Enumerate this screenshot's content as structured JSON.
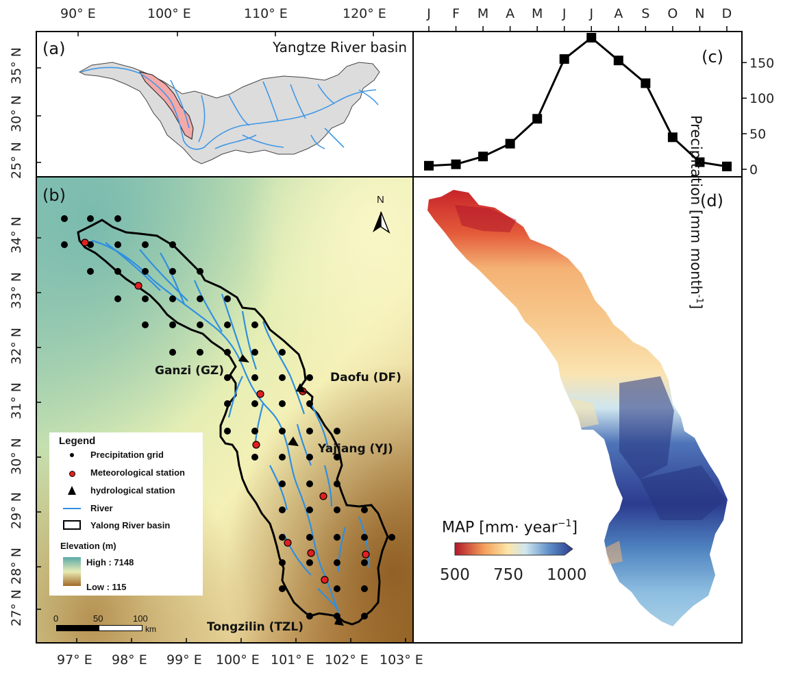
{
  "panel_a": {
    "label": "(a)",
    "title": "Yangtze River basin",
    "top_ticks": [
      "90° E",
      "100° E",
      "110° E",
      "120° E"
    ],
    "left_ticks": [
      "35° N",
      "30° N",
      "25° N"
    ]
  },
  "panel_b": {
    "label": "(b)",
    "north": "N",
    "bottom_ticks": [
      "97° E",
      "98° E",
      "99° E",
      "100° E",
      "101° E",
      "102° E",
      "103° E"
    ],
    "left_ticks": [
      "34° N",
      "33° N",
      "32° N",
      "31° N",
      "30° N",
      "29° N",
      "28° N",
      "27° N"
    ],
    "stations": [
      "Ganzi (GZ)",
      "Daofu (DF)",
      "Yajiang (YJ)",
      "Tongzilin (TZL)"
    ],
    "scale": {
      "labels": [
        "0",
        "50",
        "100"
      ],
      "unit": "km"
    },
    "legend": {
      "title": "Legend",
      "items": [
        "Precipitation grid",
        "Meteorological station",
        "hydrological station",
        "River",
        "Yalong River basin"
      ],
      "elevation_title": "Elevation (m)",
      "high": "High : 7148",
      "low": "Low : 115"
    },
    "colors": {
      "river": "#2f8fe0",
      "boundary": "#000000",
      "met_station": "#e02020"
    }
  },
  "panel_c": {
    "label": "(c)",
    "ylabel": "Precipitation [mm month",
    "ylabel_sup": "-1",
    "ylabel_end": "]",
    "chart_data": {
      "type": "line",
      "categories": [
        "J",
        "F",
        "M",
        "A",
        "M",
        "J",
        "J",
        "A",
        "S",
        "O",
        "N",
        "D"
      ],
      "values": [
        5,
        7,
        18,
        36,
        71,
        155,
        185,
        153,
        121,
        45,
        10,
        4
      ],
      "ylabel": "Precipitation [mm month-1]",
      "ylim": [
        0,
        195
      ],
      "yticks": [
        "0",
        "50",
        "100",
        "150"
      ]
    }
  },
  "panel_d": {
    "label": "(d)",
    "colorbar_title": "MAP [mm· year",
    "colorbar_sup": "−1",
    "colorbar_end": "]",
    "colorbar_ticks": [
      "500",
      "750",
      "1000"
    ],
    "colors": {
      "low": "#b2182b",
      "mid": "#fbe6a8",
      "high": "#2c3b8f"
    }
  }
}
